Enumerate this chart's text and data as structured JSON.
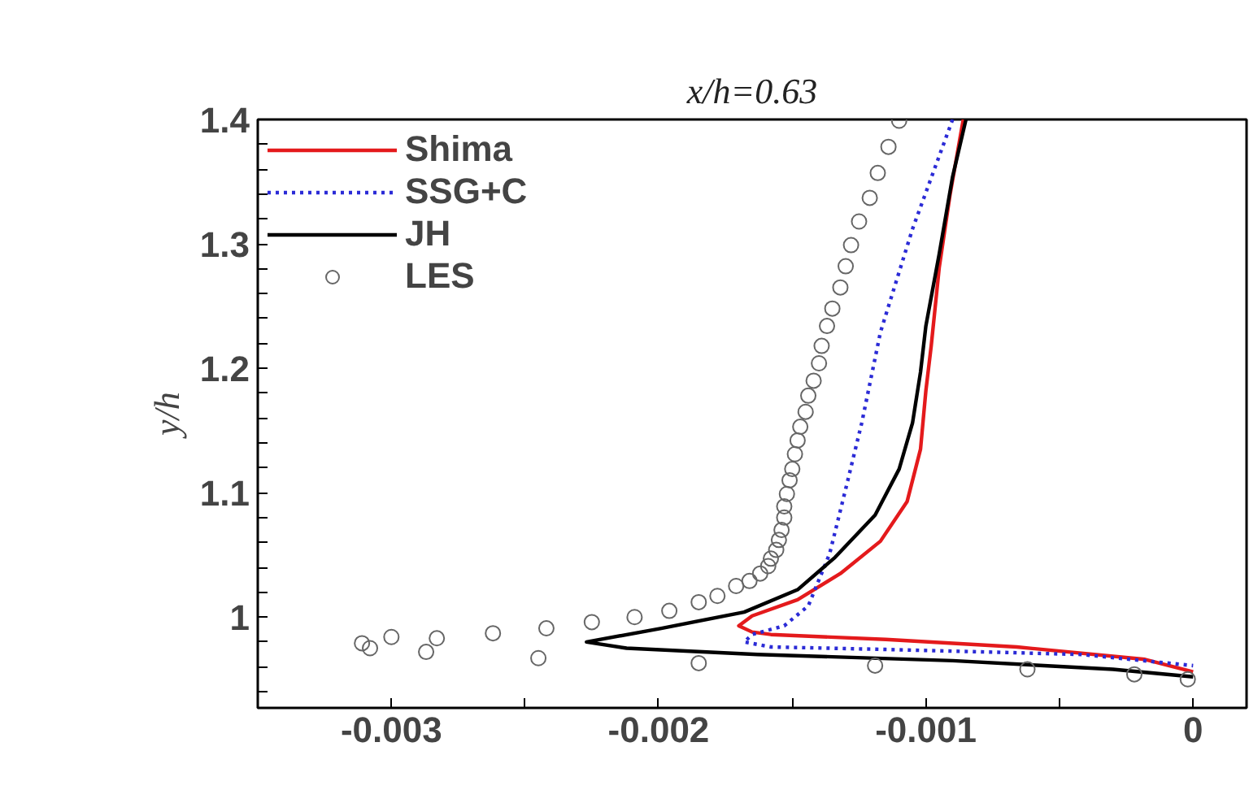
{
  "chart_data": {
    "type": "line",
    "title": "x/h=0.63",
    "ylabel": "y/h",
    "xlim": [
      -0.0035,
      0.0002
    ],
    "ylim": [
      0.927,
      1.4
    ],
    "xticks": [
      -0.003,
      {
        "value": -0.0025,
        "label": null
      },
      -0.002,
      {
        "value": -0.0015,
        "label": null
      },
      -0.001,
      {
        "value": -0.0005,
        "label": null
      },
      0
    ],
    "yticks": [
      {
        "value": 0.94,
        "label": null
      },
      {
        "value": 0.96,
        "label": null
      },
      {
        "value": 0.98,
        "label": null
      },
      1,
      {
        "value": 1.02,
        "label": null
      },
      {
        "value": 1.04,
        "label": null
      },
      {
        "value": 1.06,
        "label": null
      },
      {
        "value": 1.08,
        "label": null
      },
      1.1,
      {
        "value": 1.12,
        "label": null
      },
      {
        "value": 1.14,
        "label": null
      },
      {
        "value": 1.16,
        "label": null
      },
      {
        "value": 1.18,
        "label": null
      },
      1.2,
      {
        "value": 1.22,
        "label": null
      },
      {
        "value": 1.24,
        "label": null
      },
      {
        "value": 1.26,
        "label": null
      },
      {
        "value": 1.28,
        "label": null
      },
      1.3,
      {
        "value": 1.32,
        "label": null
      },
      {
        "value": 1.34,
        "label": null
      },
      {
        "value": 1.36,
        "label": null
      },
      {
        "value": 1.38,
        "label": null
      },
      1.4
    ],
    "grid": false,
    "legend": "top left",
    "series": [
      {
        "name": "Shima",
        "color": "#e41a1c",
        "line_style": "solid",
        "x": [
          -0.00086,
          -0.00091,
          -0.00095,
          -0.00098,
          -0.001,
          -0.00102,
          -0.00107,
          -0.00117,
          -0.00132,
          -0.00148,
          -0.00165,
          -0.0017,
          -0.00165,
          -0.00158,
          -0.00115,
          -0.00066,
          -0.00018,
          0
        ],
        "values": [
          1.4,
          1.339,
          1.281,
          1.218,
          1.182,
          1.135,
          1.093,
          1.061,
          1.035,
          1.014,
          1.001,
          0.993,
          0.988,
          0.986,
          0.982,
          0.976,
          0.966,
          0.956
        ]
      },
      {
        "name": "SSG+C",
        "color": "#2b2bd6",
        "line_style": "dotted",
        "x": [
          -0.0009,
          -0.00105,
          -0.00117,
          -0.00124,
          -0.0013,
          -0.00136,
          -0.00144,
          -0.00153,
          -0.00165,
          -0.00168,
          -0.00158,
          -0.00115,
          -0.00042,
          0
        ],
        "values": [
          1.4,
          1.312,
          1.229,
          1.156,
          1.103,
          1.051,
          1.009,
          0.993,
          0.986,
          0.98,
          0.976,
          0.974,
          0.97,
          0.961
        ]
      },
      {
        "name": "JH",
        "color": "#000000",
        "line_style": "solid",
        "x": [
          -0.00085,
          -0.0009,
          -0.00095,
          -0.001,
          -0.00102,
          -0.00105,
          -0.0011,
          -0.00119,
          -0.00134,
          -0.00148,
          -0.00168,
          -0.00199,
          -0.00227,
          -0.00212,
          -0.00163,
          -0.0009,
          -0.0003,
          0
        ],
        "values": [
          1.4,
          1.354,
          1.292,
          1.234,
          1.197,
          1.156,
          1.119,
          1.082,
          1.048,
          1.022,
          1.004,
          0.991,
          0.98,
          0.975,
          0.97,
          0.965,
          0.958,
          0.952
        ]
      },
      {
        "name": "LES",
        "type": "scatter",
        "marker": "circle",
        "color": "#666666",
        "x": [
          -0.0011,
          -0.00114,
          -0.00118,
          -0.00121,
          -0.00125,
          -0.00128,
          -0.0013,
          -0.00132,
          -0.00135,
          -0.00137,
          -0.00139,
          -0.0014,
          -0.00142,
          -0.00144,
          -0.00145,
          -0.00147,
          -0.00148,
          -0.00149,
          -0.0015,
          -0.00151,
          -0.00152,
          -0.00153,
          -0.00153,
          -0.00154,
          -0.00155,
          -0.00156,
          -0.00158,
          -0.00159,
          -0.00162,
          -0.00166,
          -0.00171,
          -0.00178,
          -0.00185,
          -0.00196,
          -0.00209,
          -0.00225,
          -0.00242,
          -0.00262,
          -0.00283,
          -0.003,
          -0.00311,
          -0.00308,
          -0.00287,
          -0.00245,
          -0.00185,
          -0.00119,
          -0.00062,
          -0.00022,
          -2e-05
        ],
        "values": [
          1.399,
          1.378,
          1.357,
          1.337,
          1.318,
          1.299,
          1.282,
          1.265,
          1.248,
          1.234,
          1.218,
          1.204,
          1.19,
          1.178,
          1.165,
          1.153,
          1.142,
          1.131,
          1.119,
          1.11,
          1.099,
          1.089,
          1.08,
          1.07,
          1.062,
          1.054,
          1.047,
          1.041,
          1.035,
          1.029,
          1.025,
          1.017,
          1.012,
          1.005,
          1.0,
          0.996,
          0.991,
          0.987,
          0.983,
          0.984,
          0.979,
          0.975,
          0.972,
          0.967,
          0.963,
          0.961,
          0.958,
          0.954,
          0.95
        ]
      }
    ]
  }
}
